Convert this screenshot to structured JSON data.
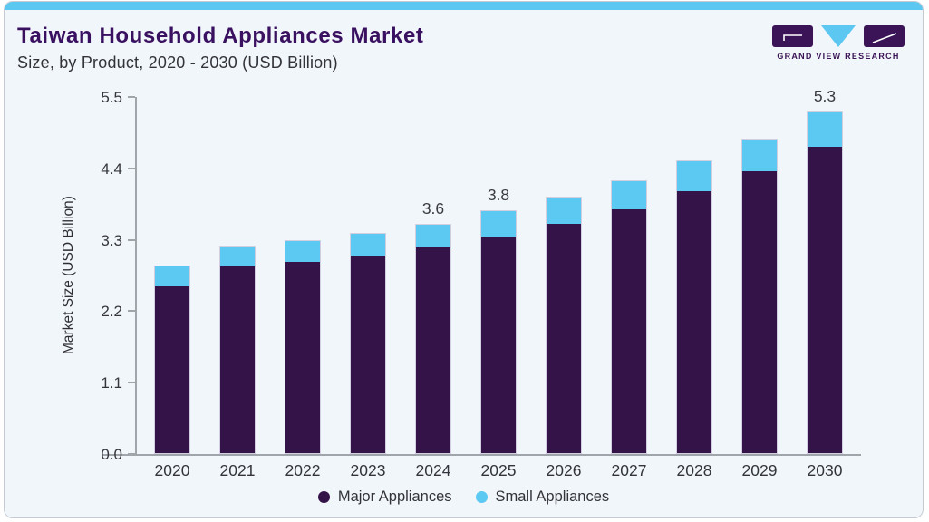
{
  "header": {
    "title": "Taiwan Household Appliances Market",
    "subtitle": "Size, by Product, 2020 - 2030 (USD Billion)"
  },
  "logo": {
    "text": "GRAND VIEW RESEARCH"
  },
  "colors": {
    "accent_blue": "#5CC8F2",
    "brand_purple": "#3A1161",
    "card_background": "#F1F6FA",
    "axis": "#A0A5AC",
    "text": "#33333B"
  },
  "chart_data": {
    "type": "bar",
    "stacked": true,
    "title": "Taiwan Household Appliances Market Size, by Product, 2020 - 2030 (USD Billion)",
    "categories": [
      "2020",
      "2021",
      "2022",
      "2023",
      "2024",
      "2025",
      "2026",
      "2027",
      "2028",
      "2029",
      "2030"
    ],
    "series": [
      {
        "name": "Major Appliances",
        "color": "#341348",
        "values": [
          2.6,
          2.91,
          2.97,
          3.07,
          3.19,
          3.37,
          3.56,
          3.78,
          4.06,
          4.37,
          4.75
        ]
      },
      {
        "name": "Small Appliances",
        "color": "#5CC9F3",
        "values": [
          0.3,
          0.3,
          0.32,
          0.34,
          0.36,
          0.38,
          0.4,
          0.44,
          0.46,
          0.49,
          0.53
        ]
      }
    ],
    "totals": [
      2.9,
      3.21,
      3.29,
      3.41,
      3.55,
      3.75,
      3.96,
      4.22,
      4.52,
      4.86,
      5.28
    ],
    "value_labels": {
      "2024": "3.6",
      "2025": "3.8",
      "2030": "5.3"
    },
    "xlabel": "",
    "ylabel": "Market Size (USD Billion)",
    "yticks": [
      "0.0",
      "1.1",
      "2.2",
      "3.3",
      "4.4",
      "5.5"
    ],
    "ylim": [
      0,
      5.5
    ],
    "grid": false,
    "legend_position": "bottom"
  }
}
